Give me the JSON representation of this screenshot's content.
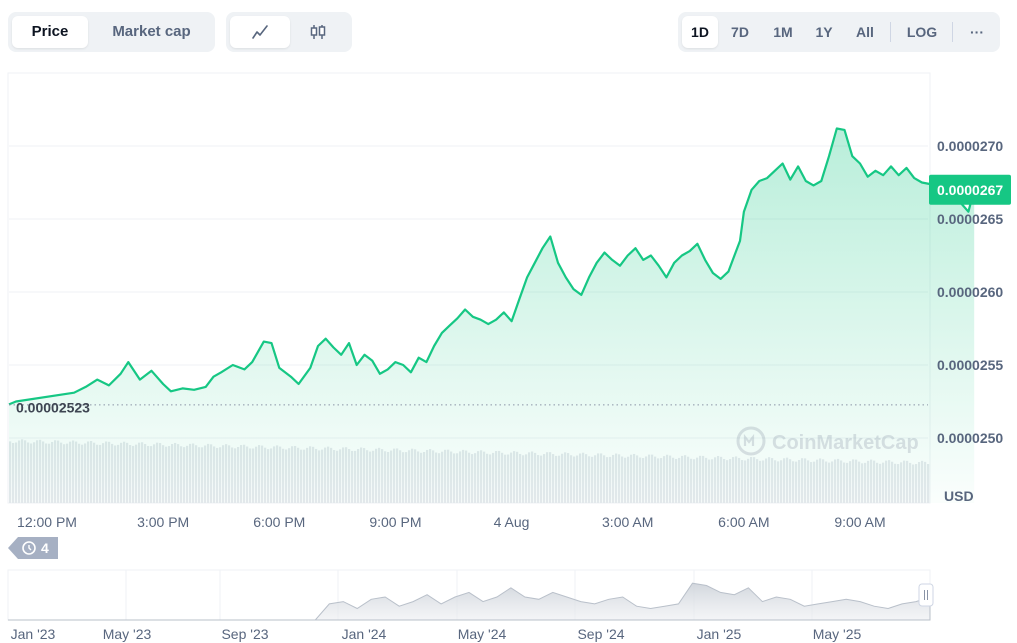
{
  "tabs": {
    "price": "Price",
    "market_cap": "Market cap"
  },
  "chart_type_icons": [
    "line-chart-icon",
    "candlestick-icon"
  ],
  "ranges": [
    "1D",
    "7D",
    "1M",
    "1Y",
    "All"
  ],
  "log_label": "LOG",
  "more_label": "···",
  "watermark": "CoinMarketCap",
  "history_badge": "4",
  "colors": {
    "line": "#16c784",
    "accent": "#16c784",
    "grid": "#eff2f5",
    "volume": "#e4e7ec",
    "mini": "#d4d8de"
  },
  "chart_data": {
    "type": "area",
    "title": "",
    "currency": "USD",
    "current_price_label": "0.0000267",
    "open_price_label": "0.00002523",
    "open_price": 2.523e-05,
    "ylim": [
      2.47e-05,
      2.76e-05
    ],
    "y_ticks": [
      "0.0000250",
      "0.0000255",
      "0.0000260",
      "0.0000265",
      "0.0000270"
    ],
    "y_tick_values": [
      2.5e-05,
      2.55e-05,
      2.6e-05,
      2.65e-05,
      2.7e-05
    ],
    "x_ticks": [
      "12:00 PM",
      "3:00 PM",
      "6:00 PM",
      "9:00 PM",
      "4 Aug",
      "3:00 AM",
      "6:00 AM",
      "9:00 AM"
    ],
    "x_tick_hours": [
      0,
      3,
      6,
      9,
      12,
      15,
      18,
      21
    ],
    "x_start_hour": -0.8,
    "x_end_hour": 23.95,
    "series": [
      {
        "values": [
          [
            -0.8,
            2.525e-05
          ],
          [
            0.7,
            2.531e-05
          ],
          [
            1.0,
            2.535e-05
          ],
          [
            1.3,
            2.54e-05
          ],
          [
            1.6,
            2.536e-05
          ],
          [
            1.9,
            2.544e-05
          ],
          [
            2.1,
            2.552e-05
          ],
          [
            2.4,
            2.54e-05
          ],
          [
            2.7,
            2.546e-05
          ],
          [
            3.0,
            2.537e-05
          ],
          [
            3.2,
            2.532e-05
          ],
          [
            3.5,
            2.534e-05
          ],
          [
            3.8,
            2.533e-05
          ],
          [
            4.1,
            2.535e-05
          ],
          [
            4.3,
            2.542e-05
          ],
          [
            4.5,
            2.545e-05
          ],
          [
            4.8,
            2.55e-05
          ],
          [
            5.1,
            2.547e-05
          ],
          [
            5.3,
            2.552e-05
          ],
          [
            5.6,
            2.566e-05
          ],
          [
            5.8,
            2.565e-05
          ],
          [
            6.0,
            2.548e-05
          ],
          [
            6.3,
            2.542e-05
          ],
          [
            6.5,
            2.537e-05
          ],
          [
            6.8,
            2.548e-05
          ],
          [
            7.0,
            2.563e-05
          ],
          [
            7.2,
            2.568e-05
          ],
          [
            7.4,
            2.562e-05
          ],
          [
            7.6,
            2.557e-05
          ],
          [
            7.8,
            2.565e-05
          ],
          [
            8.0,
            2.55e-05
          ],
          [
            8.2,
            2.557e-05
          ],
          [
            8.4,
            2.553e-05
          ],
          [
            8.6,
            2.544e-05
          ],
          [
            8.8,
            2.547e-05
          ],
          [
            9.0,
            2.552e-05
          ],
          [
            9.2,
            2.55e-05
          ],
          [
            9.4,
            2.545e-05
          ],
          [
            9.6,
            2.555e-05
          ],
          [
            9.8,
            2.552e-05
          ],
          [
            10.0,
            2.563e-05
          ],
          [
            10.2,
            2.572e-05
          ],
          [
            10.4,
            2.577e-05
          ],
          [
            10.6,
            2.582e-05
          ],
          [
            10.8,
            2.588e-05
          ],
          [
            11.0,
            2.583e-05
          ],
          [
            11.2,
            2.581e-05
          ],
          [
            11.4,
            2.578e-05
          ],
          [
            11.6,
            2.581e-05
          ],
          [
            11.8,
            2.586e-05
          ],
          [
            12.0,
            2.58e-05
          ],
          [
            12.2,
            2.595e-05
          ],
          [
            12.4,
            2.61e-05
          ],
          [
            12.6,
            2.62e-05
          ],
          [
            12.8,
            2.63e-05
          ],
          [
            13.0,
            2.638e-05
          ],
          [
            13.2,
            2.62e-05
          ],
          [
            13.4,
            2.61e-05
          ],
          [
            13.6,
            2.602e-05
          ],
          [
            13.8,
            2.598e-05
          ],
          [
            14.0,
            2.61e-05
          ],
          [
            14.2,
            2.62e-05
          ],
          [
            14.4,
            2.627e-05
          ],
          [
            14.6,
            2.622e-05
          ],
          [
            14.8,
            2.618e-05
          ],
          [
            15.0,
            2.625e-05
          ],
          [
            15.2,
            2.63e-05
          ],
          [
            15.4,
            2.622e-05
          ],
          [
            15.6,
            2.625e-05
          ],
          [
            15.8,
            2.618e-05
          ],
          [
            16.0,
            2.61e-05
          ],
          [
            16.2,
            2.62e-05
          ],
          [
            16.4,
            2.625e-05
          ],
          [
            16.6,
            2.628e-05
          ],
          [
            16.8,
            2.633e-05
          ],
          [
            17.0,
            2.622e-05
          ],
          [
            17.2,
            2.613e-05
          ],
          [
            17.4,
            2.609e-05
          ],
          [
            17.6,
            2.614e-05
          ],
          [
            17.8,
            2.628e-05
          ],
          [
            17.9,
            2.635e-05
          ],
          [
            18.0,
            2.655e-05
          ],
          [
            18.2,
            2.67e-05
          ],
          [
            18.4,
            2.676e-05
          ],
          [
            18.6,
            2.678e-05
          ],
          [
            18.8,
            2.683e-05
          ],
          [
            19.0,
            2.688e-05
          ],
          [
            19.2,
            2.677e-05
          ],
          [
            19.4,
            2.686e-05
          ],
          [
            19.6,
            2.676e-05
          ],
          [
            19.8,
            2.673e-05
          ],
          [
            20.0,
            2.676e-05
          ],
          [
            20.2,
            2.693e-05
          ],
          [
            20.4,
            2.712e-05
          ],
          [
            20.6,
            2.711e-05
          ],
          [
            20.8,
            2.693e-05
          ],
          [
            21.0,
            2.688e-05
          ],
          [
            21.2,
            2.679e-05
          ],
          [
            21.4,
            2.683e-05
          ],
          [
            21.6,
            2.68e-05
          ],
          [
            21.8,
            2.686e-05
          ],
          [
            22.0,
            2.68e-05
          ],
          [
            22.2,
            2.685e-05
          ],
          [
            22.4,
            2.678e-05
          ],
          [
            22.6,
            2.675e-05
          ],
          [
            22.8,
            2.674e-05
          ],
          [
            23.0,
            2.671e-05
          ],
          [
            23.2,
            2.661e-05
          ],
          [
            23.4,
            2.668e-05
          ],
          [
            23.6,
            2.661e-05
          ],
          [
            23.8,
            2.655e-05
          ],
          [
            23.95,
            2.67e-05
          ]
        ]
      }
    ],
    "navigator": {
      "labels": [
        "Jan '23",
        "May '23",
        "Sep '23",
        "Jan '24",
        "May '24",
        "Sep '24",
        "Jan '25",
        "May '25"
      ],
      "profile": [
        0,
        0,
        0,
        0,
        0,
        0,
        0,
        0,
        0,
        0,
        0,
        0,
        0,
        0,
        0,
        0,
        0,
        0,
        0,
        0,
        0,
        0,
        0,
        0.35,
        0.4,
        0.25,
        0.45,
        0.5,
        0.3,
        0.4,
        0.55,
        0.35,
        0.5,
        0.6,
        0.4,
        0.5,
        0.7,
        0.5,
        0.45,
        0.6,
        0.5,
        0.4,
        0.35,
        0.45,
        0.5,
        0.3,
        0.25,
        0.3,
        0.35,
        0.8,
        0.75,
        0.6,
        0.55,
        0.7,
        0.4,
        0.5,
        0.45,
        0.3,
        0.35,
        0.4,
        0.45,
        0.4,
        0.3,
        0.25,
        0.35,
        0.4,
        0.5
      ]
    }
  }
}
